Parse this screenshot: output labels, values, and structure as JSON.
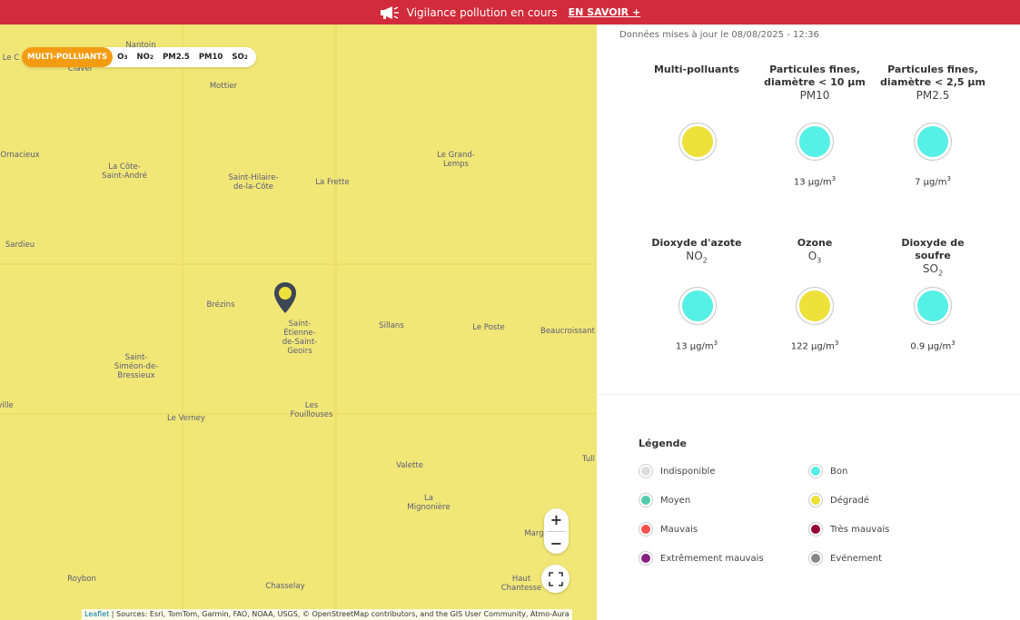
{
  "banner": {
    "title": "Vigilance pollution en cours",
    "link": "EN SAVOIR +",
    "color": "#d12b3c"
  },
  "map": {
    "selector": [
      "MULTI-POLLUANTS",
      "O",
      "NO",
      "PM2.5",
      "PM10",
      "SO"
    ],
    "selector_subs": [
      "3",
      "2",
      "2"
    ],
    "fill_color": "#f1e776",
    "places": [
      {
        "name": "Nantoin"
      },
      {
        "name": "Clavel"
      },
      {
        "name": "Le C"
      },
      {
        "name": "Mottier"
      },
      {
        "name": "Ornacieux"
      },
      {
        "name": "La Côte-\nSaint-André"
      },
      {
        "name": "Saint-Hilaire-\nde-la-Côte"
      },
      {
        "name": "La Frette"
      },
      {
        "name": "Le Grand-\nLemps"
      },
      {
        "name": "Sardieu"
      },
      {
        "name": "Brézins"
      },
      {
        "name": "Saint-\nÉtienne-\nde-Saint-\nGeoirs"
      },
      {
        "name": "Sillans"
      },
      {
        "name": "Le Poste"
      },
      {
        "name": "Beaucroissant"
      },
      {
        "name": "Saint-\nSiméon-de-\nBressieux"
      },
      {
        "name": "ville"
      },
      {
        "name": "Les\nFouillouses"
      },
      {
        "name": "Le Verney"
      },
      {
        "name": "Valette"
      },
      {
        "name": "Tull"
      },
      {
        "name": "La\nMignonière"
      },
      {
        "name": "Marg"
      },
      {
        "name": "Roybon"
      },
      {
        "name": "Chasselay"
      },
      {
        "name": "Haut\nChantesse"
      }
    ],
    "zoom_in": "+",
    "zoom_out": "−",
    "attribution_leaflet": "Leaflet",
    "attribution_text": " | Sources: Esri, TomTom, Garmin, FAO, NOAA, USGS, © OpenStreetMap contributors, and the GIS User Community, Atmo-Aura"
  },
  "panel": {
    "updated": "Données mises à jour le 08/08/2025 - 12:36",
    "cards": [
      {
        "name": "Multi-polluants",
        "sym": "",
        "sub": "",
        "value": "",
        "unit": "",
        "color": "#ede13a"
      },
      {
        "name": "Particules fines, diamètre < 10 µm",
        "sym": "PM10",
        "sub": "",
        "value": "13 µg/m",
        "unit": "3",
        "color": "#55f0e6"
      },
      {
        "name": "Particules fines, diamètre < 2,5 µm",
        "sym": "PM2.5",
        "sub": "",
        "value": "7 µg/m",
        "unit": "3",
        "color": "#55f0e6"
      },
      {
        "name": "Dioxyde d'azote",
        "sym": "NO",
        "sub": "2",
        "value": "13 µg/m",
        "unit": "3",
        "color": "#55f0e6"
      },
      {
        "name": "Ozone",
        "sym": "O",
        "sub": "3",
        "value": "122 µg/m",
        "unit": "3",
        "color": "#ede13a"
      },
      {
        "name": "Dioxyde de soufre",
        "sym": "SO",
        "sub": "2",
        "value": "0.9 µg/m",
        "unit": "3",
        "color": "#55f0e6"
      }
    ],
    "legend": {
      "title": "Légende",
      "items": [
        {
          "label": "Indisponible",
          "color": "#dddddd"
        },
        {
          "label": "Bon",
          "color": "#55f0e6"
        },
        {
          "label": "Moyen",
          "color": "#50ccaa"
        },
        {
          "label": "Dégradé",
          "color": "#ede13a"
        },
        {
          "label": "Mauvais",
          "color": "#ff5050"
        },
        {
          "label": "Très mauvais",
          "color": "#960032"
        },
        {
          "label": "Extrêmement mauvais",
          "color": "#872181"
        },
        {
          "label": "Evénement",
          "color": "#888888"
        }
      ]
    }
  }
}
